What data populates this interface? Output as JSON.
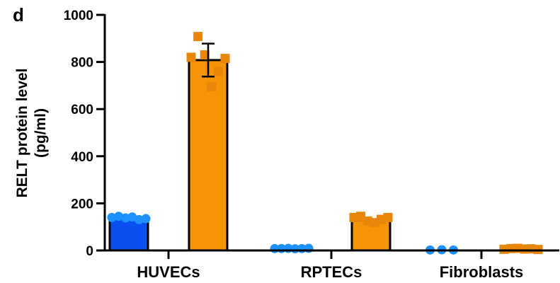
{
  "panel_label": "d",
  "colors": {
    "series_a": "#0a50f0",
    "series_a_points": "#1e90ff",
    "series_b": "#f59505",
    "series_b_points": "#e8860a",
    "axis": "#000000"
  },
  "chart_data": {
    "type": "bar",
    "categories": [
      "HUVECs",
      "RPTECs",
      "Fibroblasts"
    ],
    "ylabel_line1": "RELT protein level",
    "ylabel_line2": "(pg/ml)",
    "ylim": [
      0,
      1000
    ],
    "yticks": [
      "0",
      "200",
      "400",
      "600",
      "800",
      "1000"
    ],
    "grid": false,
    "series": [
      {
        "values": [
          137,
          8,
          3
        ],
        "points": [
          [
            140,
            145,
            138,
            142,
            131,
            135
          ],
          [
            8,
            8,
            9,
            7,
            8,
            9
          ],
          [
            2,
            3,
            2
          ]
        ],
        "marker": "circle"
      },
      {
        "values": [
          808,
          130,
          6
        ],
        "error": [
          70,
          0,
          0
        ],
        "points": [
          [
            820,
            908,
            830,
            695,
            760,
            815
          ],
          [
            140,
            145,
            125,
            118,
            132,
            140
          ],
          [
            5,
            8,
            9,
            6,
            7,
            4
          ]
        ],
        "marker": "square"
      }
    ]
  }
}
